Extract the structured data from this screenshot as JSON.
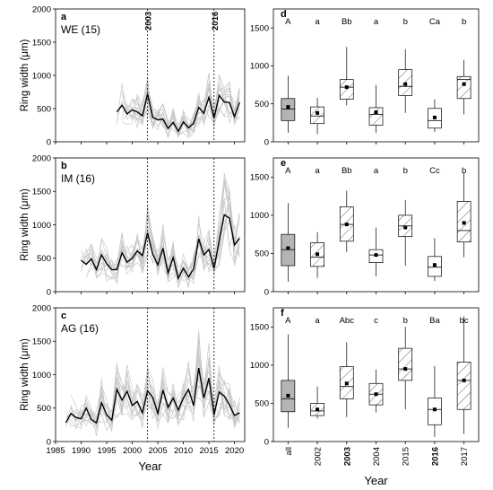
{
  "chart_data": [
    {
      "type": "line",
      "panel": "a",
      "title": "WE (15)",
      "xlabel": "Year",
      "ylabel": "Ring width (μm)",
      "xlim": [
        1985,
        2022
      ],
      "ylim": [
        0,
        2000
      ],
      "xticks": [
        "1985",
        "1990",
        "1995",
        "2000",
        "2005",
        "2010",
        "2015",
        "2020"
      ],
      "yticks": [
        "0",
        "500",
        "1000",
        "1500",
        "2000"
      ],
      "markers": [
        {
          "x": 2003,
          "label": "2003"
        },
        {
          "x": 2016,
          "label": "2016"
        }
      ],
      "series": [
        {
          "x": [
            1997,
            1998,
            1999,
            2000,
            2001,
            2002,
            2003,
            2004,
            2005,
            2006,
            2007,
            2008,
            2009,
            2010,
            2011,
            2012,
            2013,
            2014,
            2015,
            2016,
            2017,
            2018,
            2019,
            2020,
            2021
          ],
          "values": [
            450,
            550,
            420,
            480,
            450,
            390,
            720,
            370,
            330,
            340,
            200,
            290,
            160,
            300,
            210,
            280,
            520,
            430,
            670,
            360,
            700,
            600,
            590,
            380,
            590
          ]
        }
      ]
    },
    {
      "type": "line",
      "panel": "b",
      "title": "IM (16)",
      "xlabel": "Year",
      "ylabel": "Ring width (μm)",
      "xlim": [
        1985,
        2022
      ],
      "ylim": [
        0,
        2000
      ],
      "xticks": [
        "1985",
        "1990",
        "1995",
        "2000",
        "2005",
        "2010",
        "2015",
        "2020"
      ],
      "yticks": [
        "0",
        "500",
        "1000",
        "1500",
        "2000"
      ],
      "markers": [
        {
          "x": 2003,
          "label": ""
        },
        {
          "x": 2016,
          "label": ""
        }
      ],
      "series": [
        {
          "x": [
            1990,
            1991,
            1992,
            1993,
            1994,
            1995,
            1996,
            1997,
            1998,
            1999,
            2000,
            2001,
            2002,
            2003,
            2004,
            2005,
            2006,
            2007,
            2008,
            2009,
            2010,
            2011,
            2012,
            2013,
            2014,
            2015,
            2016,
            2017,
            2018,
            2019,
            2020,
            2021
          ],
          "values": [
            470,
            410,
            490,
            330,
            550,
            420,
            330,
            330,
            580,
            440,
            500,
            610,
            540,
            880,
            560,
            400,
            650,
            280,
            510,
            200,
            350,
            220,
            340,
            790,
            550,
            630,
            350,
            760,
            1150,
            1100,
            700,
            800
          ]
        }
      ]
    },
    {
      "type": "line",
      "panel": "c",
      "title": "AG (16)",
      "xlabel": "Year",
      "ylabel": "Ring width (μm)",
      "xlim": [
        1985,
        2022
      ],
      "ylim": [
        0,
        2000
      ],
      "xticks": [
        "1985",
        "1990",
        "1995",
        "2000",
        "2005",
        "2010",
        "2015",
        "2020"
      ],
      "yticks": [
        "0",
        "500",
        "1000",
        "1500",
        "2000"
      ],
      "markers": [
        {
          "x": 2003,
          "label": ""
        },
        {
          "x": 2016,
          "label": ""
        }
      ],
      "series": [
        {
          "x": [
            1987,
            1988,
            1989,
            1990,
            1991,
            1992,
            1993,
            1994,
            1995,
            1996,
            1997,
            1998,
            1999,
            2000,
            2001,
            2002,
            2003,
            2004,
            2005,
            2006,
            2007,
            2008,
            2009,
            2010,
            2011,
            2012,
            2013,
            2014,
            2015,
            2016,
            2017,
            2018,
            2019,
            2020,
            2021
          ],
          "values": [
            280,
            420,
            360,
            340,
            500,
            330,
            280,
            580,
            400,
            320,
            780,
            620,
            750,
            540,
            600,
            430,
            760,
            660,
            420,
            770,
            510,
            650,
            470,
            650,
            780,
            540,
            1100,
            650,
            950,
            400,
            740,
            680,
            550,
            390,
            430
          ]
        }
      ]
    },
    {
      "type": "boxplot",
      "panel": "d",
      "xlabel": "Year",
      "ylabel": "",
      "ylim": [
        0,
        1750
      ],
      "yticks": [
        "0",
        "500",
        "1000",
        "1500"
      ],
      "categories": [
        "all",
        "2002",
        "2003",
        "2004",
        "2015",
        "2016",
        "2017"
      ],
      "letters": [
        "A",
        "a",
        "Bb",
        "a",
        "b",
        "Ca",
        "b"
      ],
      "boxes": [
        {
          "min": 120,
          "q1": 280,
          "median": 430,
          "q3": 570,
          "max": 870,
          "mean": 460
        },
        {
          "min": 100,
          "q1": 240,
          "median": 340,
          "q3": 460,
          "max": 580,
          "mean": 380
        },
        {
          "min": 480,
          "q1": 560,
          "median": 720,
          "q3": 820,
          "max": 1250,
          "mean": 720
        },
        {
          "min": 120,
          "q1": 220,
          "median": 360,
          "q3": 450,
          "max": 750,
          "mean": 390
        },
        {
          "min": 380,
          "q1": 610,
          "median": 730,
          "q3": 950,
          "max": 1220,
          "mean": 760
        },
        {
          "min": 130,
          "q1": 180,
          "median": 280,
          "q3": 440,
          "max": 560,
          "mean": 320
        },
        {
          "min": 360,
          "q1": 570,
          "median": 820,
          "q3": 860,
          "max": 1080,
          "mean": 760
        }
      ]
    },
    {
      "type": "boxplot",
      "panel": "e",
      "xlabel": "Year",
      "ylabel": "",
      "ylim": [
        0,
        1750
      ],
      "yticks": [
        "0",
        "500",
        "1000",
        "1500"
      ],
      "categories": [
        "all",
        "2002",
        "2003",
        "2004",
        "2015",
        "2016",
        "2017"
      ],
      "letters": [
        "A",
        "a",
        "Bb",
        "a",
        "b",
        "Cc",
        "b"
      ],
      "boxes": [
        {
          "min": 130,
          "q1": 340,
          "median": 550,
          "q3": 750,
          "max": 1160,
          "mean": 570
        },
        {
          "min": 180,
          "q1": 330,
          "median": 450,
          "q3": 640,
          "max": 780,
          "mean": 490
        },
        {
          "min": 520,
          "q1": 660,
          "median": 880,
          "q3": 1110,
          "max": 1320,
          "mean": 880
        },
        {
          "min": 200,
          "q1": 380,
          "median": 480,
          "q3": 550,
          "max": 840,
          "mean": 480
        },
        {
          "min": 340,
          "q1": 720,
          "median": 860,
          "q3": 1000,
          "max": 1200,
          "mean": 840
        },
        {
          "min": 140,
          "q1": 200,
          "median": 320,
          "q3": 460,
          "max": 700,
          "mean": 350
        },
        {
          "min": 450,
          "q1": 650,
          "median": 800,
          "q3": 1180,
          "max": 1560,
          "mean": 900
        }
      ]
    },
    {
      "type": "boxplot",
      "panel": "f",
      "xlabel": "Year",
      "ylabel": "",
      "ylim": [
        0,
        1750
      ],
      "yticks": [
        "0",
        "500",
        "1000",
        "1500"
      ],
      "categories": [
        "all",
        "2002",
        "2003",
        "2004",
        "2015",
        "2016",
        "2017"
      ],
      "letters": [
        "A",
        "a",
        "Abc",
        "c",
        "b",
        "Ba",
        "bc"
      ],
      "boxes": [
        {
          "min": 180,
          "q1": 390,
          "median": 560,
          "q3": 800,
          "max": 1400,
          "mean": 600
        },
        {
          "min": 300,
          "q1": 340,
          "median": 400,
          "q3": 500,
          "max": 720,
          "mean": 420
        },
        {
          "min": 320,
          "q1": 560,
          "median": 720,
          "q3": 980,
          "max": 1300,
          "mean": 760
        },
        {
          "min": 380,
          "q1": 480,
          "median": 620,
          "q3": 760,
          "max": 940,
          "mean": 620
        },
        {
          "min": 420,
          "q1": 800,
          "median": 950,
          "q3": 1220,
          "max": 1500,
          "mean": 950
        },
        {
          "min": 60,
          "q1": 220,
          "median": 420,
          "q3": 570,
          "max": 990,
          "mean": 420
        },
        {
          "min": 100,
          "q1": 420,
          "median": 800,
          "q3": 1040,
          "max": 1640,
          "mean": 800
        }
      ]
    }
  ],
  "style": {
    "mean_line_color": "#000000",
    "individual_line_color": "#c8c8c8",
    "all_box_color": "#b4b4b4",
    "marker_line_color": "#000000"
  }
}
